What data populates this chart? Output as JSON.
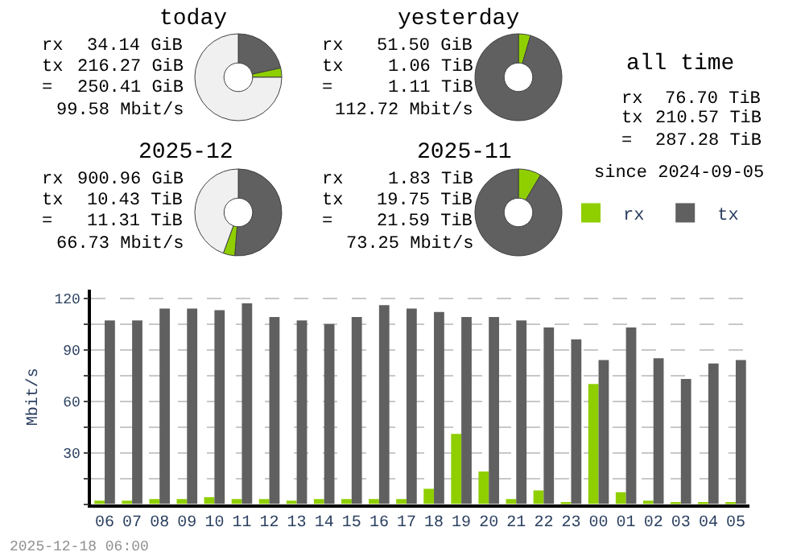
{
  "chart_data": [
    {
      "type": "donut",
      "title": "today",
      "categories": [
        null,
        null,
        null
      ],
      "values": [
        21.6,
        3.4,
        75
      ],
      "colors": [
        "#606060",
        "#8fcf00",
        "#f0f0f0"
      ],
      "annotations": [
        "rx",
        "34.14 GiB",
        "tx",
        "216.27 GiB",
        "=",
        "250.41 GiB",
        "99.58 Mbit/s"
      ]
    },
    {
      "type": "donut",
      "title": "yesterday",
      "categories": [
        null,
        null
      ],
      "values": [
        4.5,
        95.5
      ],
      "colors": [
        "#8fcf00",
        "#606060"
      ],
      "annotations": [
        "rx",
        "51.50 GiB",
        "tx",
        "1.06 TiB",
        "=",
        "1.11 TiB",
        "112.72 Mbit/s"
      ]
    },
    {
      "type": "other",
      "title": "all time",
      "annotations": [
        "rx",
        "76.70 TiB",
        "tx",
        "210.57 TiB",
        "=",
        "287.28 TiB",
        "since 2024-09-05"
      ]
    },
    {
      "type": "donut",
      "title": "2025-12",
      "categories": [
        null,
        null,
        null
      ],
      "values": [
        51.3,
        4.3,
        44.4
      ],
      "colors": [
        "#606060",
        "#8fcf00",
        "#f0f0f0"
      ],
      "annotations": [
        "rx",
        "900.96 GiB",
        "tx",
        "10.43 TiB",
        "=",
        "11.31 TiB",
        "66.73 Mbit/s"
      ]
    },
    {
      "type": "donut",
      "title": "2025-11",
      "categories": [
        null,
        null
      ],
      "values": [
        8.5,
        91.5
      ],
      "colors": [
        "#8fcf00",
        "#606060"
      ],
      "annotations": [
        "rx",
        "1.83 TiB",
        "tx",
        "19.75 TiB",
        "=",
        "21.59 TiB",
        "73.25 Mbit/s"
      ]
    },
    {
      "type": "bar",
      "ylabel": "Mbit/s",
      "categories": [
        "06",
        "07",
        "08",
        "09",
        "10",
        "11",
        "12",
        "13",
        "14",
        "15",
        "16",
        "17",
        "18",
        "19",
        "20",
        "21",
        "22",
        "23",
        "00",
        "01",
        "02",
        "03",
        "04",
        "05"
      ],
      "series": [
        {
          "name": "rx",
          "color": "#8fcf00",
          "values": [
            2,
            2,
            3,
            3,
            4,
            3,
            3,
            2,
            3,
            3,
            3,
            3,
            9,
            41,
            19,
            3,
            8,
            1,
            70,
            7,
            2,
            1,
            1,
            1
          ]
        },
        {
          "name": "tx",
          "color": "#606060",
          "values": [
            107,
            107,
            114,
            114,
            113,
            117,
            109,
            107,
            105,
            109,
            116,
            114,
            112,
            109,
            109,
            107,
            103,
            96,
            84,
            103,
            85,
            73,
            82,
            84
          ]
        }
      ],
      "ylim": [
        0,
        125
      ],
      "yticks": [
        {
          "value": 0,
          "label": null
        },
        {
          "value": 15,
          "label": null
        },
        30,
        {
          "value": 45,
          "label": null
        },
        60,
        {
          "value": 75,
          "label": null
        },
        90,
        {
          "value": 105,
          "label": null
        },
        120
      ],
      "grid": "y",
      "legend": "top right",
      "annotations": [
        "2025-12-18 06:00"
      ]
    }
  ]
}
